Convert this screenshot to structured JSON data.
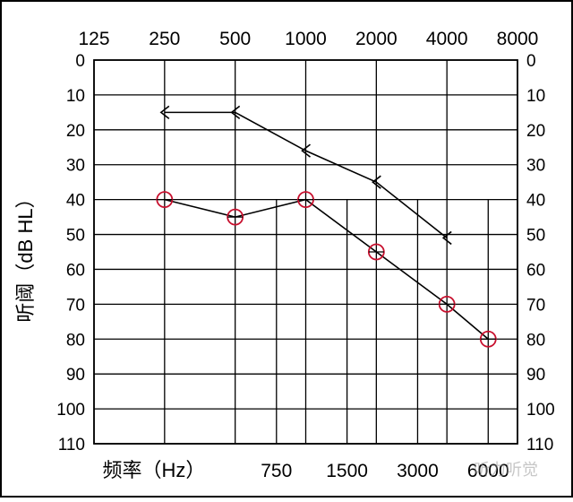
{
  "chart_data": {
    "type": "line",
    "top_x_ticks": [
      "125",
      "250",
      "500",
      "1000",
      "2000",
      "4000",
      "8000"
    ],
    "bottom_x_ticks": [
      "750",
      "1500",
      "3000",
      "6000"
    ],
    "y_ticks": [
      "0",
      "10",
      "20",
      "30",
      "40",
      "50",
      "60",
      "70",
      "80",
      "90",
      "100",
      "110"
    ],
    "ylabel": "听阈（dB HL）",
    "xlabel": "频率（Hz）",
    "ylim": [
      0,
      110
    ],
    "y_inverted": true,
    "grid": true,
    "series": [
      {
        "marker": "circle",
        "color": "#c8102e",
        "points": [
          {
            "x": 250,
            "y": 40
          },
          {
            "x": 500,
            "y": 45
          },
          {
            "x": 1000,
            "y": 40
          },
          {
            "x": 2000,
            "y": 55
          },
          {
            "x": 4000,
            "y": 70
          },
          {
            "x": 6000,
            "y": 80
          }
        ]
      },
      {
        "marker": "bracket",
        "color": "#000000",
        "points": [
          {
            "x": 250,
            "y": 15
          },
          {
            "x": 500,
            "y": 15
          },
          {
            "x": 1000,
            "y": 26
          },
          {
            "x": 2000,
            "y": 35
          },
          {
            "x": 4000,
            "y": 51
          }
        ]
      }
    ]
  },
  "watermark": "听力听觉"
}
